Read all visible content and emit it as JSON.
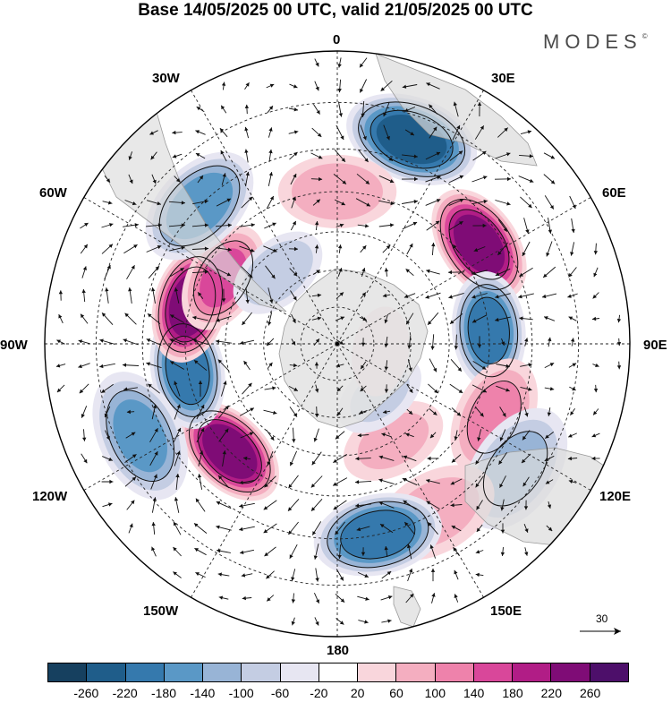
{
  "title": "Base 14/05/2025 00 UTC, valid 21/05/2025 00 UTC",
  "brand": {
    "name": "MODES",
    "mark": "©"
  },
  "longitude_labels": {
    "n0": "0",
    "e30": "30E",
    "e60": "60E",
    "e90": "90E",
    "e120": "120E",
    "e150": "150E",
    "s180": "180",
    "w150": "150W",
    "w120": "120W",
    "w90": "90W",
    "w60": "60W",
    "w30": "30W"
  },
  "reference_vector": {
    "value": "30"
  },
  "colorbar": {
    "ticks": [
      "-260",
      "-220",
      "-180",
      "-140",
      "-100",
      "-60",
      "-20",
      "20",
      "60",
      "100",
      "140",
      "180",
      "220",
      "260"
    ],
    "colors": [
      "#16405f",
      "#1f5d8a",
      "#3579ad",
      "#5a98c6",
      "#98b4d6",
      "#c4cde3",
      "#e7e6f2",
      "#ffffff",
      "#f9d6dc",
      "#f4aec0",
      "#ee82ab",
      "#d9479a",
      "#b11d86",
      "#7f0c76",
      "#4d0f6a"
    ]
  },
  "map": {
    "projection": "south-polar-stereographic",
    "anomaly_blobs": [
      {
        "lon": 20,
        "lat": -35,
        "value": -230
      },
      {
        "lon": 55,
        "lat": -45,
        "value": 230
      },
      {
        "lon": 85,
        "lat": -50,
        "value": -190
      },
      {
        "lon": 115,
        "lat": -45,
        "value": 100
      },
      {
        "lon": 125,
        "lat": -35,
        "value": -100
      },
      {
        "lon": 150,
        "lat": -40,
        "value": 70
      },
      {
        "lon": 168,
        "lat": -40,
        "value": -200
      },
      {
        "lon": 150,
        "lat": -60,
        "value": 60
      },
      {
        "lon": 140,
        "lat": -72,
        "value": -60
      },
      {
        "lon": -135,
        "lat": -50,
        "value": 240
      },
      {
        "lon": -100,
        "lat": -50,
        "value": -200
      },
      {
        "lon": -115,
        "lat": -35,
        "value": -140
      },
      {
        "lon": -75,
        "lat": -50,
        "value": 240
      },
      {
        "lon": -60,
        "lat": -55,
        "value": 140
      },
      {
        "lon": -45,
        "lat": -40,
        "value": -160
      },
      {
        "lon": 0,
        "lat": -50,
        "value": 80
      },
      {
        "lon": -40,
        "lat": -65,
        "value": -90
      },
      {
        "lon": 100,
        "lat": -78,
        "value": 50
      }
    ]
  }
}
